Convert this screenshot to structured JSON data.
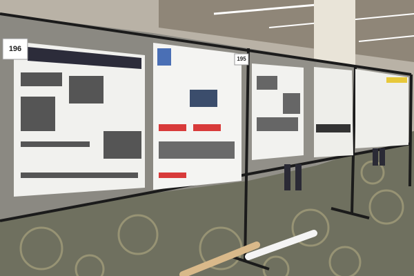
{
  "scene": {
    "board_labels": [
      "196",
      "195"
    ]
  }
}
